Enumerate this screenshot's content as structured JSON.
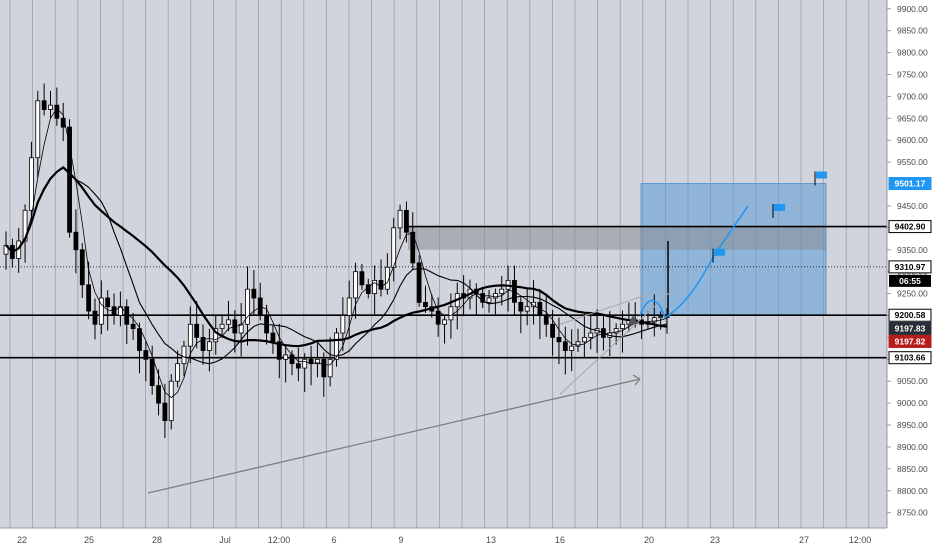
{
  "chart_data": {
    "type": "candlestick",
    "title": "",
    "xlabel": "",
    "ylabel": "",
    "ylim": [
      8715,
      9920
    ],
    "y_ticks": [
      "9900.00",
      "9850.00",
      "9800.00",
      "9750.00",
      "9700.00",
      "9650.00",
      "9600.00",
      "9550.00",
      "9500.00",
      "9450.00",
      "9400.00",
      "9350.00",
      "9300.00",
      "9250.00",
      "9200.00",
      "9150.00",
      "9100.00",
      "9050.00",
      "9000.00",
      "8950.00",
      "8900.00",
      "8850.00",
      "8800.00",
      "8750.00"
    ],
    "x_ticks": [
      "22",
      "25",
      "28",
      "Jul",
      "12:00",
      "6",
      "9",
      "13",
      "16",
      "20",
      "23",
      "27",
      "12:00"
    ],
    "grid": true,
    "colors": {
      "background": "#d1d4dc",
      "axis_bg": "#ffffff",
      "candle": "#000000",
      "zone_blue": "#5b9bd5",
      "line_blue": "#2196f3",
      "countdown_bg": "#000000",
      "price_red": "#b71c1c",
      "trend_gray": "#7f7f7f"
    },
    "horizontal_levels": [
      {
        "value": 9501.17,
        "label": "9501.17",
        "tag_style": "blue"
      },
      {
        "value": 9402.9,
        "label": "9402.90",
        "tag_style": "outline"
      },
      {
        "value": 9310.97,
        "label": "9310.97",
        "tag_style": "outline",
        "line_style": "dotted"
      },
      {
        "value": 9200.58,
        "label": "9200.58",
        "tag_style": "outline"
      },
      {
        "value": 9197.83,
        "label": "9197.83",
        "tag_style": "dark"
      },
      {
        "value": 9197.82,
        "label": "9197.82",
        "tag_style": "red"
      },
      {
        "value": 9103.66,
        "label": "9103.66",
        "tag_style": "outline"
      }
    ],
    "countdown": "06:55",
    "close_series": [
      9360,
      9330,
      9370,
      9440,
      9560,
      9690,
      9670,
      9680,
      9650,
      9630,
      9390,
      9350,
      9270,
      9210,
      9180,
      9240,
      9220,
      9200,
      9220,
      9180,
      9170,
      9120,
      9100,
      9040,
      9000,
      8960,
      9050,
      9090,
      9130,
      9180,
      9150,
      9120,
      9140,
      9170,
      9180,
      9190,
      9160,
      9180,
      9260,
      9240,
      9200,
      9160,
      9140,
      9100,
      9110,
      9090,
      9080,
      9100,
      9090,
      9100,
      9060,
      9100,
      9160,
      9200,
      9240,
      9300,
      9270,
      9250,
      9280,
      9260,
      9310,
      9400,
      9440,
      9390,
      9320,
      9230,
      9220,
      9210,
      9180,
      9190,
      9220,
      9250,
      9240,
      9260,
      9250,
      9230,
      9240,
      9250,
      9260,
      9280,
      9230,
      9210,
      9220,
      9230,
      9200,
      9180,
      9150,
      9140,
      9120,
      9130,
      9140,
      9150,
      9160,
      9170,
      9150,
      9160,
      9170,
      9180,
      9190,
      9190,
      9180,
      9185,
      9195,
      9197.82,
      9197.82
    ]
  },
  "annotations": {
    "target_zone": {
      "y_top": 9501.17,
      "y_bottom": 9200.58
    },
    "resistance_box": {
      "y_top": 9402.9,
      "y_bottom": 9350
    },
    "flags": [
      9501.17,
      9427,
      9325
    ]
  }
}
